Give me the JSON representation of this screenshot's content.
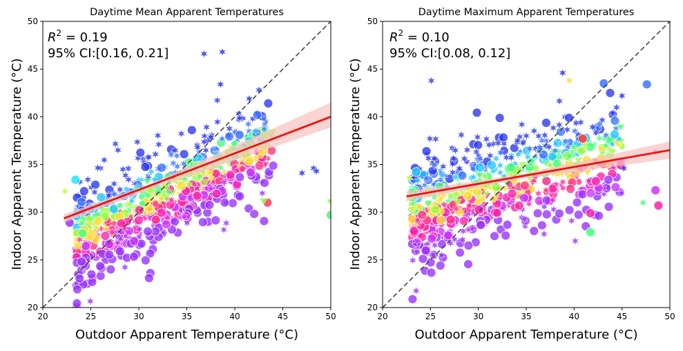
{
  "chart_data": [
    {
      "type": "scatter",
      "title": "Daytime Mean Apparent Temperatures",
      "xlabel": "Outdoor Apparent Temperature (°C)",
      "ylabel": "Indoor Apparent Temperature (°C)",
      "xlim": [
        20,
        50
      ],
      "ylim": [
        20,
        50
      ],
      "xticks": [
        20,
        25,
        30,
        35,
        40,
        45,
        50
      ],
      "yticks": [
        20,
        25,
        30,
        35,
        40,
        45,
        50
      ],
      "annotation": {
        "r2_prefix": "R",
        "r2_sup": "2",
        "r2_value": " = 0.19",
        "ci": "95% CI:[0.16, 0.21]"
      },
      "reference_line": {
        "x": [
          20,
          50
        ],
        "y": [
          20,
          50
        ],
        "style": "dashed",
        "color": "#444444"
      },
      "regression": {
        "x": [
          22.2,
          50
        ],
        "y": [
          29.35,
          40.0
        ],
        "ci_low": [
          28.9,
          38.9
        ],
        "ci_high": [
          29.8,
          41.5
        ],
        "color": "#ee1111",
        "band_color": "#f8c0c0"
      },
      "regression_band_mid": {
        "x": 31.0,
        "low": 32.3,
        "high": 32.9
      },
      "cluster": {
        "marker_x": [
          23.5,
          44.0
        ],
        "marker_y_mean": [
          27.5,
          37.5
        ],
        "marker_y_spread": 3.2,
        "count": 700,
        "extra_points": [
          [
            43.4,
            31.0,
            "circle",
            "#ff3b5c"
          ],
          [
            47.0,
            34.1,
            "star",
            "#2d3aef"
          ],
          [
            48.2,
            34.6,
            "star",
            "#2d3aef"
          ],
          [
            48.5,
            34.3,
            "star",
            "#2d3aef"
          ],
          [
            50.0,
            31.1,
            "triangle",
            "#88ff3a"
          ],
          [
            50.0,
            29.7,
            "circle",
            "#44ff66"
          ],
          [
            36.8,
            46.6,
            "star",
            "#2d3aef"
          ],
          [
            38.7,
            46.8,
            "star",
            "#2d3aef"
          ],
          [
            38.5,
            43.4,
            "star",
            "#2d3aef"
          ],
          [
            41.5,
            41.9,
            "star",
            "#2d3aef"
          ],
          [
            40.5,
            38.1,
            "circle",
            "#3e76ff"
          ],
          [
            23.4,
            33.4,
            "circle",
            "#22e6ff"
          ],
          [
            22.3,
            32.2,
            "star",
            "#bbff33"
          ],
          [
            43.0,
            31.2,
            "triangle",
            "#88ff3a"
          ],
          [
            22.8,
            28.9,
            "circle",
            "#9933ff"
          ]
        ]
      },
      "palette": [
        "#2d3aef",
        "#3e76ff",
        "#22c6ff",
        "#44ff77",
        "#99ff33",
        "#ffdd33",
        "#ff3388",
        "#ff22aa",
        "#cc33ff",
        "#9933ff"
      ]
    },
    {
      "type": "scatter",
      "title": "Daytime Maximum Apparent Temperatures",
      "xlabel": "Outdoor Apparent Temperature (°C)",
      "ylabel": "Indoor Apparent Temperature (°C)",
      "xlim": [
        20,
        50
      ],
      "ylim": [
        20,
        50
      ],
      "xticks": [
        20,
        25,
        30,
        35,
        40,
        45,
        50
      ],
      "yticks": [
        20,
        25,
        30,
        35,
        40,
        45,
        50
      ],
      "annotation": {
        "r2_prefix": "R",
        "r2_sup": "2",
        "r2_value": " = 0.10",
        "ci": "95% CI:[0.08, 0.12]"
      },
      "reference_line": {
        "x": [
          20,
          50
        ],
        "y": [
          20,
          50
        ],
        "style": "dashed",
        "color": "#444444"
      },
      "regression": {
        "x": [
          22.5,
          50
        ],
        "y": [
          31.65,
          36.5
        ],
        "ci_low": [
          31.1,
          35.6
        ],
        "ci_high": [
          32.2,
          37.4
        ],
        "color": "#ee1111",
        "band_color": "#f8c0c0"
      },
      "regression_band_mid": {
        "x": 34.0,
        "low": 33.4,
        "high": 33.9
      },
      "cluster": {
        "marker_x": [
          23.0,
          45.0
        ],
        "marker_y_mean": [
          30.0,
          36.5
        ],
        "marker_y_spread": 3.6,
        "count": 700,
        "extra_points": [
          [
            47.6,
            43.4,
            "circle",
            "#3e76ff"
          ],
          [
            48.8,
            30.7,
            "circle",
            "#ff22aa"
          ],
          [
            48.5,
            32.3,
            "circle",
            "#cc33ff"
          ],
          [
            48.5,
            36.3,
            "star",
            "#cc33ff"
          ],
          [
            47.2,
            31.0,
            "star",
            "#44ff77"
          ],
          [
            45.2,
            34.6,
            "star",
            "#2d3aef"
          ],
          [
            45.0,
            42.2,
            "star",
            "#2d3aef"
          ],
          [
            41.7,
            27.9,
            "circle",
            "#44ff77"
          ],
          [
            41.7,
            29.9,
            "circle",
            "#ff22aa"
          ],
          [
            40.9,
            37.7,
            "circle",
            "#ff3b2c"
          ],
          [
            38.8,
            44.6,
            "star",
            "#2d3aef"
          ],
          [
            39.5,
            43.8,
            "star",
            "#ffdd33"
          ],
          [
            43.1,
            43.5,
            "circle",
            "#3e76ff"
          ],
          [
            23.5,
            34.2,
            "circle",
            "#22c6ff"
          ],
          [
            22.8,
            33.6,
            "star",
            "#bbff33"
          ]
        ]
      },
      "palette": [
        "#2d3aef",
        "#3e76ff",
        "#22c6ff",
        "#44ff77",
        "#99ff33",
        "#ffdd33",
        "#ff3388",
        "#ff22aa",
        "#cc33ff",
        "#9933ff"
      ]
    }
  ]
}
